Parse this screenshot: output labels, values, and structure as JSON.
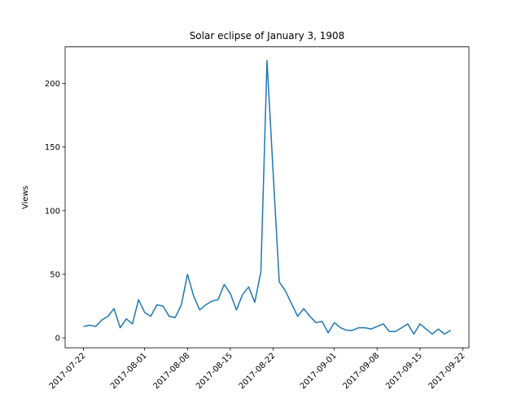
{
  "chart_data": {
    "type": "line",
    "title": "Solar eclipse of January 3, 1908",
    "ylabel": "Views",
    "x": [
      "2017-07-22",
      "2017-07-23",
      "2017-07-24",
      "2017-07-25",
      "2017-07-26",
      "2017-07-27",
      "2017-07-28",
      "2017-07-29",
      "2017-07-30",
      "2017-07-31",
      "2017-08-01",
      "2017-08-02",
      "2017-08-03",
      "2017-08-04",
      "2017-08-05",
      "2017-08-06",
      "2017-08-07",
      "2017-08-08",
      "2017-08-09",
      "2017-08-10",
      "2017-08-11",
      "2017-08-12",
      "2017-08-13",
      "2017-08-14",
      "2017-08-15",
      "2017-08-16",
      "2017-08-17",
      "2017-08-18",
      "2017-08-19",
      "2017-08-20",
      "2017-08-21",
      "2017-08-22",
      "2017-08-23",
      "2017-08-24",
      "2017-08-25",
      "2017-08-26",
      "2017-08-27",
      "2017-08-28",
      "2017-08-29",
      "2017-08-30",
      "2017-08-31",
      "2017-09-01",
      "2017-09-02",
      "2017-09-03",
      "2017-09-04",
      "2017-09-05",
      "2017-09-06",
      "2017-09-07",
      "2017-09-08",
      "2017-09-09",
      "2017-09-10",
      "2017-09-11",
      "2017-09-12",
      "2017-09-13",
      "2017-09-14",
      "2017-09-15",
      "2017-09-16",
      "2017-09-17",
      "2017-09-18",
      "2017-09-19",
      "2017-09-20"
    ],
    "series": [
      {
        "name": "Views",
        "color": "#1f77b4",
        "values": [
          9,
          10,
          9,
          14,
          17,
          23,
          8,
          15,
          11,
          30,
          20,
          17,
          26,
          25,
          17,
          16,
          26,
          50,
          33,
          22,
          26,
          29,
          30,
          42,
          35,
          22,
          34,
          40,
          28,
          52,
          218,
          130,
          44,
          37,
          27,
          17,
          23,
          17,
          12,
          13,
          4,
          12,
          8,
          6,
          6,
          8,
          8,
          7,
          9,
          11,
          5,
          5,
          8,
          11,
          3,
          11,
          7,
          3,
          7,
          3,
          6
        ]
      }
    ],
    "xlim": [
      "2017-07-19",
      "2017-09-23"
    ],
    "xticks": [
      "2017-07-22",
      "2017-08-01",
      "2017-08-08",
      "2017-08-15",
      "2017-08-22",
      "2017-09-01",
      "2017-09-08",
      "2017-09-15",
      "2017-09-22"
    ],
    "ylim": [
      -7.75,
      228.75
    ],
    "yticks": [
      0,
      50,
      100,
      150,
      200
    ]
  }
}
